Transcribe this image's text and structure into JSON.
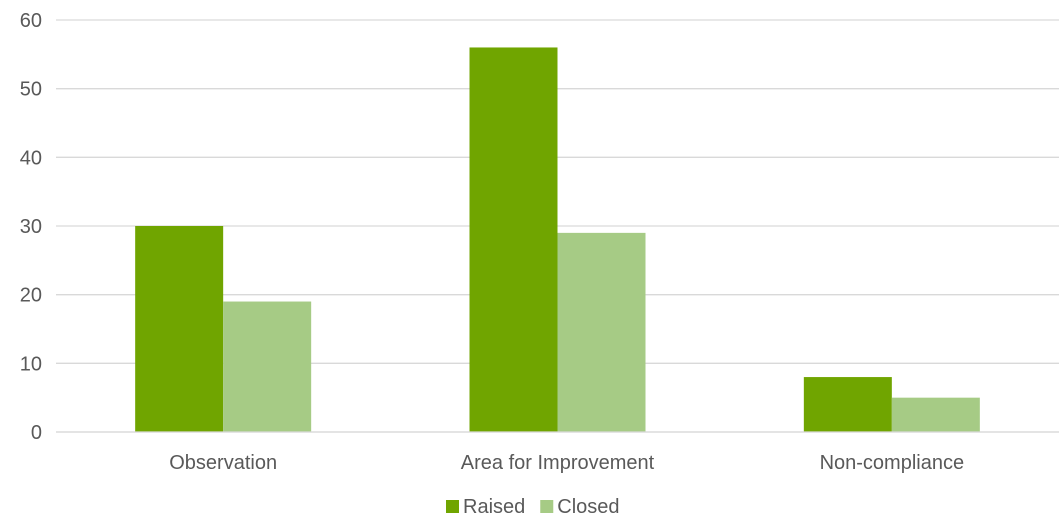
{
  "chart_data": {
    "type": "bar",
    "categories": [
      "Observation",
      "Area for Improvement",
      "Non-compliance"
    ],
    "series": [
      {
        "name": "Raised",
        "values": [
          30,
          56,
          8
        ],
        "color": "#70a500"
      },
      {
        "name": "Closed",
        "values": [
          19,
          29,
          5
        ],
        "color": "#a6cb85"
      }
    ],
    "ylim": [
      0,
      60
    ],
    "yticks": [
      0,
      10,
      20,
      30,
      40,
      50,
      60
    ],
    "grid": true,
    "legend_position": "bottom-center",
    "gridline_color": "#d9d9d9",
    "axis_color": "#d9d9d9"
  }
}
